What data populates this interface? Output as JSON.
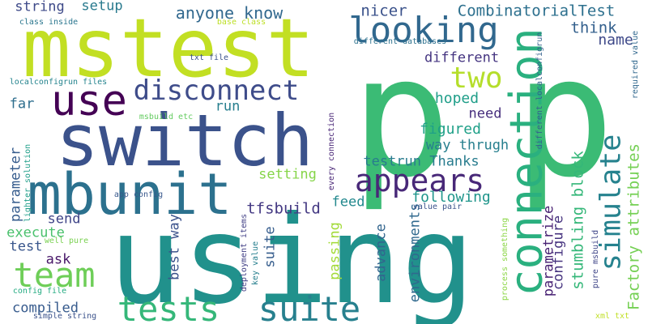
{
  "words": [
    {
      "text": "using",
      "color": "#21918c"
    },
    {
      "text": "p",
      "color": "#3bbb75"
    },
    {
      "text": "p",
      "color": "#3bbb75"
    },
    {
      "text": "mstest",
      "color": "#c2df23"
    },
    {
      "text": "switch",
      "color": "#3b528b"
    },
    {
      "text": "mbunit",
      "color": "#2c718e"
    },
    {
      "text": "connection",
      "color": "#2ab07f"
    },
    {
      "text": "suite",
      "color": "#27808e"
    },
    {
      "text": "tests",
      "color": "#35b779"
    },
    {
      "text": "disconnect",
      "color": "#3e4c8a"
    },
    {
      "text": "use",
      "color": "#440154"
    },
    {
      "text": "team",
      "color": "#6ece58"
    },
    {
      "text": "looking",
      "color": "#31688e"
    },
    {
      "text": "appears",
      "color": "#482878"
    },
    {
      "text": "simulate",
      "color": "#26828e"
    },
    {
      "text": "two",
      "color": "#b5de2b"
    },
    {
      "text": "Factory attributes",
      "color": "#75d054"
    },
    {
      "text": "CombinatorialTest",
      "color": "#2d708e"
    },
    {
      "text": "anyone know",
      "color": "#31688e"
    },
    {
      "text": "nicer",
      "color": "#3b528b"
    },
    {
      "text": "think",
      "color": "#34608d"
    },
    {
      "text": "name",
      "color": "#3e4989"
    },
    {
      "text": "different",
      "color": "#453581"
    },
    {
      "text": "hoped",
      "color": "#1f9e89"
    },
    {
      "text": "need",
      "color": "#472f7d"
    },
    {
      "text": "figured",
      "color": "#1fa088"
    },
    {
      "text": "way thrugh",
      "color": "#277f8e"
    },
    {
      "text": "testrun Thanks",
      "color": "#287c8e"
    },
    {
      "text": "following",
      "color": "#1f958b"
    },
    {
      "text": "setting",
      "color": "#86d549"
    },
    {
      "text": "tfsbuild",
      "color": "#443983"
    },
    {
      "text": "feed",
      "color": "#23898e"
    },
    {
      "text": "run",
      "color": "#277f8e"
    },
    {
      "text": "far",
      "color": "#2e6e8e"
    },
    {
      "text": "string",
      "color": "#3e4a89"
    },
    {
      "text": "setup",
      "color": "#297a8e"
    },
    {
      "text": "parameter",
      "color": "#365c8d"
    },
    {
      "text": "send",
      "color": "#404588"
    },
    {
      "text": "execute",
      "color": "#4ac16d"
    },
    {
      "text": "test",
      "color": "#39568c"
    },
    {
      "text": "ask",
      "color": "#481769"
    },
    {
      "text": "compiled",
      "color": "#375b8d"
    },
    {
      "text": "best way",
      "color": "#3b528b"
    },
    {
      "text": "suite",
      "color": "#365d8d"
    },
    {
      "text": "passing",
      "color": "#a2da37"
    },
    {
      "text": "advance",
      "color": "#32658e"
    },
    {
      "text": "environments",
      "color": "#30698e"
    },
    {
      "text": "parametrize",
      "color": "#482173"
    },
    {
      "text": "configure",
      "color": "#46337f"
    },
    {
      "text": "stumbling block",
      "color": "#35b779"
    },
    {
      "text": "process something",
      "color": "#8bd646"
    },
    {
      "text": "pure msbuild",
      "color": "#404688"
    },
    {
      "text": "xml txt",
      "color": "#c0df25"
    },
    {
      "text": "required value",
      "color": "#31688e"
    },
    {
      "text": "class inside",
      "color": "#2a768e"
    },
    {
      "text": "base class",
      "color": "#bddf26"
    },
    {
      "text": "different databases",
      "color": "#2d718e"
    },
    {
      "text": "different localconfigrun",
      "color": "#34618d"
    },
    {
      "text": "every connection",
      "color": "#482576"
    },
    {
      "text": "localconfigrun files",
      "color": "#25848e"
    },
    {
      "text": "txt file",
      "color": "#3b528b"
    },
    {
      "text": "msbuild etc",
      "color": "#63cb5f"
    },
    {
      "text": "app config",
      "color": "#38588c"
    },
    {
      "text": "lighter solution",
      "color": "#1f9e89"
    },
    {
      "text": "well pure",
      "color": "#7ad151"
    },
    {
      "text": "config file",
      "color": "#25ab82"
    },
    {
      "text": "simple string",
      "color": "#3b528b"
    },
    {
      "text": "deployment items",
      "color": "#424086"
    },
    {
      "text": "key value",
      "color": "#277f8e"
    },
    {
      "text": "value pair",
      "color": "#3b528b"
    }
  ]
}
